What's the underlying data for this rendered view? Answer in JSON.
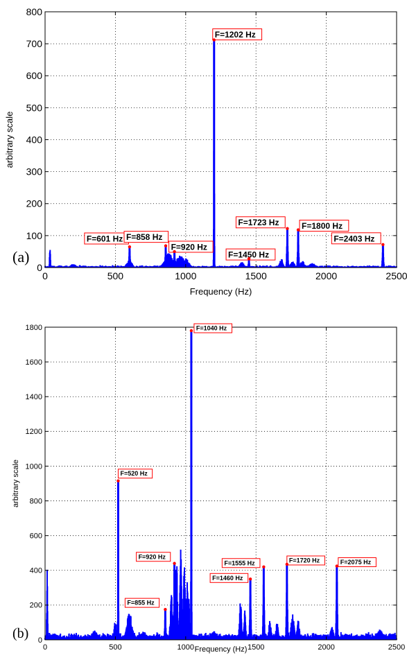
{
  "chart_data": [
    {
      "type": "line",
      "panel_label": "(a)",
      "xlabel": "Frequency (Hz)",
      "ylabel": "arbitrary scale",
      "xlim": [
        0,
        2500
      ],
      "ylim": [
        0,
        800
      ],
      "xticks": [
        0,
        500,
        1000,
        1500,
        2000,
        2500
      ],
      "yticks": [
        0,
        100,
        200,
        300,
        400,
        500,
        600,
        700,
        800
      ],
      "grid": true,
      "line_color": "#0000ff",
      "marker_color": "#ff0000",
      "peaks": [
        {
          "label": "F=601 Hz",
          "x": 601,
          "y": 65
        },
        {
          "label": "F=858 Hz",
          "x": 858,
          "y": 68
        },
        {
          "label": "F=920 Hz",
          "x": 920,
          "y": 50
        },
        {
          "label": "F=1202 Hz",
          "x": 1202,
          "y": 712
        },
        {
          "label": "F=1450 Hz",
          "x": 1450,
          "y": 28
        },
        {
          "label": "F=1723 Hz",
          "x": 1723,
          "y": 122
        },
        {
          "label": "F=1800 Hz",
          "x": 1800,
          "y": 118
        },
        {
          "label": "F=2403 Hz",
          "x": 2403,
          "y": 72
        }
      ]
    },
    {
      "type": "line",
      "panel_label": "(b)",
      "xlabel": "Frequency (Hz)",
      "ylabel": "arbitrary scale",
      "xlim": [
        0,
        2500
      ],
      "ylim": [
        0,
        1800
      ],
      "xticks": [
        0,
        500,
        1000,
        1500,
        2000,
        2500
      ],
      "yticks": [
        0,
        200,
        400,
        600,
        800,
        1000,
        1200,
        1400,
        1600,
        1800
      ],
      "grid": true,
      "line_color": "#0000ff",
      "marker_color": "#ff0000",
      "peaks": [
        {
          "label": "F=520 Hz",
          "x": 520,
          "y": 915
        },
        {
          "label": "F=855 Hz",
          "x": 855,
          "y": 175
        },
        {
          "label": "F=920 Hz",
          "x": 920,
          "y": 440
        },
        {
          "label": "F=1040 Hz",
          "x": 1040,
          "y": 1780
        },
        {
          "label": "F=1460 Hz",
          "x": 1460,
          "y": 350
        },
        {
          "label": "F=1555 Hz",
          "x": 1555,
          "y": 420
        },
        {
          "label": "F=1720 Hz",
          "x": 1720,
          "y": 435
        },
        {
          "label": "F=2075 Hz",
          "x": 2075,
          "y": 425
        }
      ]
    }
  ]
}
